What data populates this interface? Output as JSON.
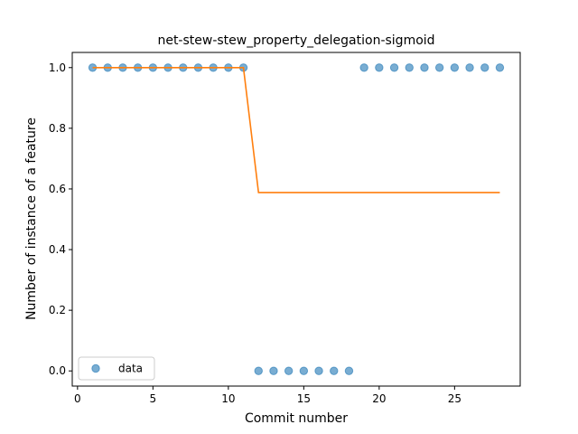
{
  "chart_data": {
    "type": "scatter",
    "title": "net-stew-stew_property_delegation-sigmoid",
    "xlabel": "Commit number",
    "ylabel": "Number of instance of a feature",
    "xlim": [
      -0.35,
      29.35
    ],
    "ylim": [
      -0.05,
      1.05
    ],
    "xticks": [
      0,
      5,
      10,
      15,
      20,
      25
    ],
    "yticks": [
      0.0,
      0.2,
      0.4,
      0.6,
      0.8,
      1.0
    ],
    "xtick_labels": [
      "0",
      "5",
      "10",
      "15",
      "20",
      "25"
    ],
    "ytick_labels": [
      "0.0",
      "0.2",
      "0.4",
      "0.6",
      "0.8",
      "1.0"
    ],
    "legend": {
      "placement": "lower-left",
      "entries": [
        "data"
      ]
    },
    "grid": false,
    "series": [
      {
        "name": "data",
        "kind": "scatter",
        "color": "#1f77b4",
        "x": [
          1,
          2,
          3,
          4,
          5,
          6,
          7,
          8,
          9,
          10,
          11,
          12,
          13,
          14,
          15,
          16,
          17,
          18,
          19,
          20,
          21,
          22,
          23,
          24,
          25,
          26,
          27,
          28
        ],
        "y": [
          1,
          1,
          1,
          1,
          1,
          1,
          1,
          1,
          1,
          1,
          1,
          0,
          0,
          0,
          0,
          0,
          0,
          0,
          1,
          1,
          1,
          1,
          1,
          1,
          1,
          1,
          1,
          1
        ]
      },
      {
        "kind": "line",
        "color": "#ff7f0e",
        "x": [
          1,
          2,
          3,
          4,
          5,
          6,
          7,
          8,
          9,
          10,
          11,
          12,
          13,
          14,
          15,
          16,
          17,
          18,
          19,
          20,
          21,
          22,
          23,
          24,
          25,
          26,
          27,
          28
        ],
        "y": [
          1,
          1,
          1,
          1,
          1,
          1,
          1,
          1,
          1,
          1,
          1,
          0.588,
          0.588,
          0.588,
          0.588,
          0.588,
          0.588,
          0.588,
          0.588,
          0.588,
          0.588,
          0.588,
          0.588,
          0.588,
          0.588,
          0.588,
          0.588,
          0.588
        ]
      }
    ]
  }
}
